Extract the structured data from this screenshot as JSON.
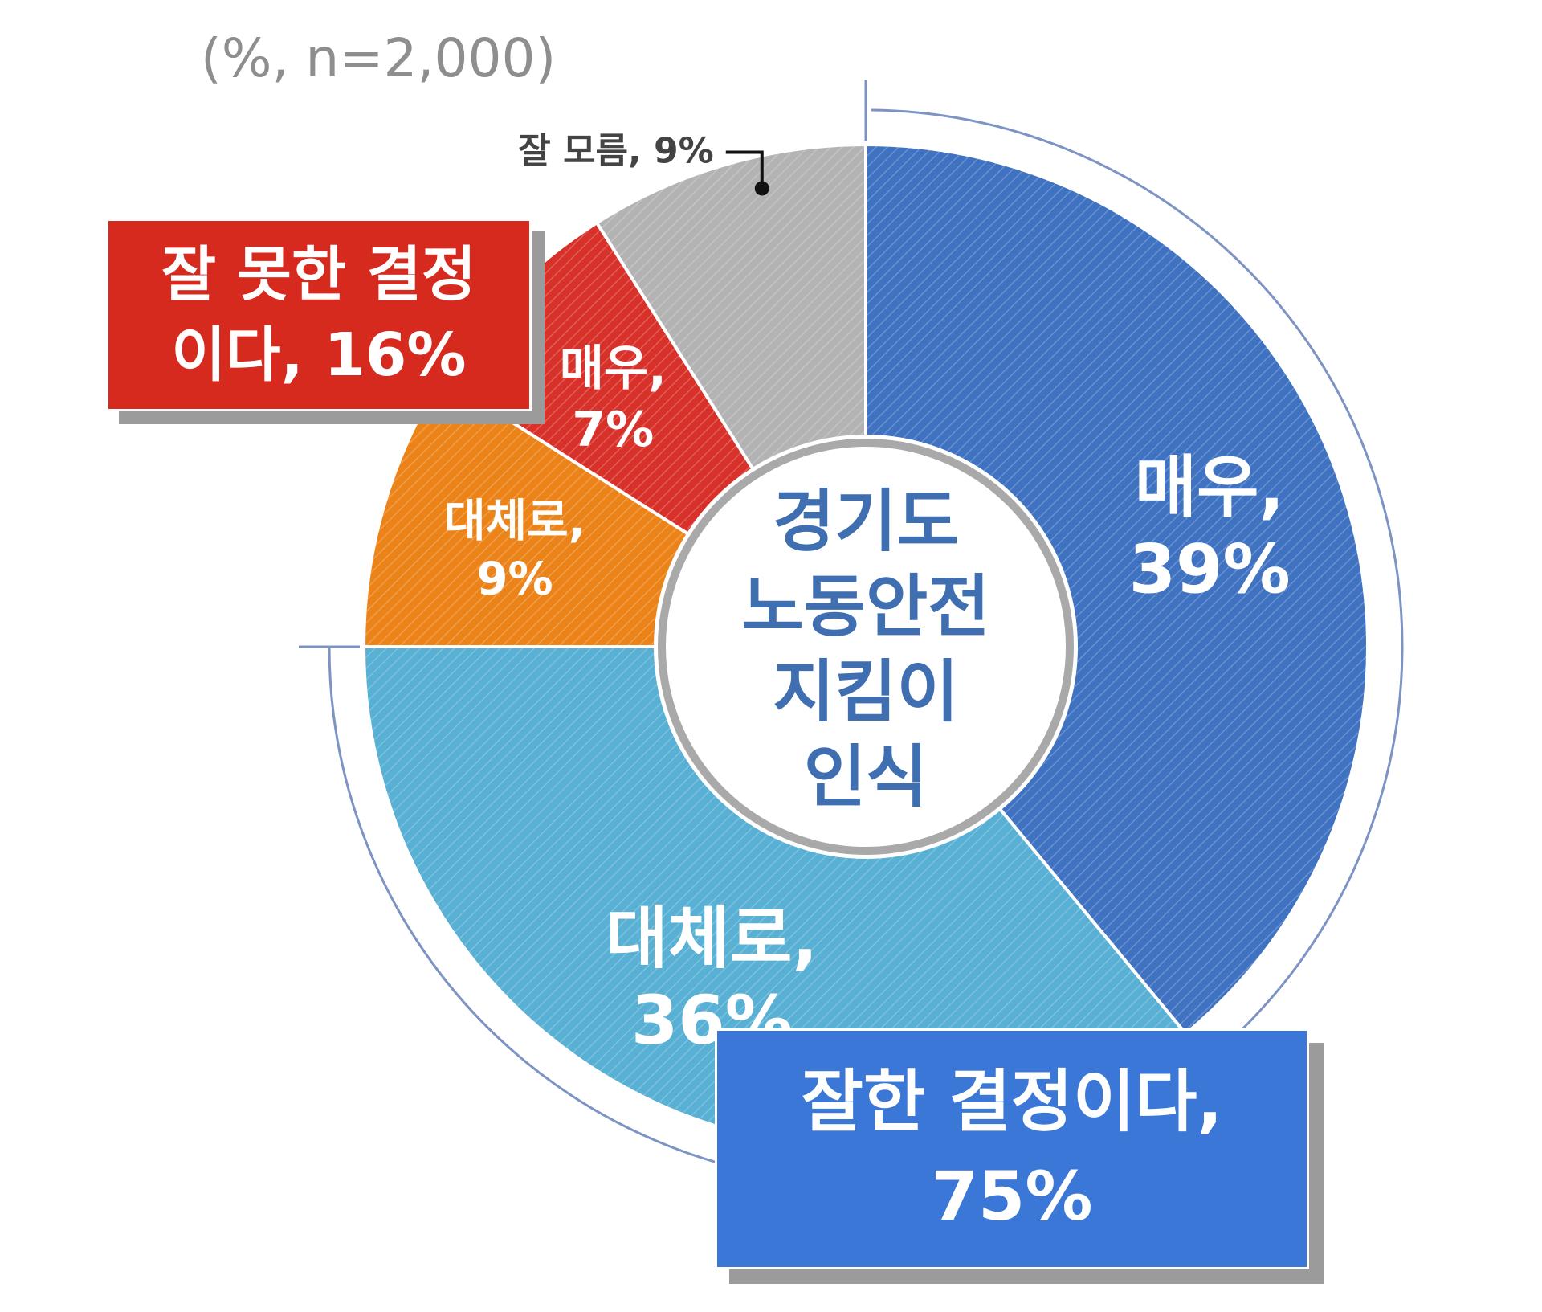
{
  "note": "(%, n=2,000)",
  "colors": {
    "very_positive": "#3f72c1",
    "somewhat_positive": "#58b0d4",
    "somewhat_negative": "#ec8318",
    "very_negative": "#d8312a",
    "dont_know": "#b3b3b3",
    "positive_box": "#3a77d6",
    "negative_box": "#d72a1f",
    "center_text": "#3f6fb0",
    "bracket": "#7d93c4"
  },
  "center_label": [
    "경기도",
    "노동안전",
    "지킴이",
    "인식"
  ],
  "groups": {
    "positive": {
      "line1": "잘한 결정이다,",
      "line2": "75%",
      "value": 75
    },
    "negative": {
      "line1": "잘 못한 결정",
      "line2": "이다, 16%",
      "value": 16
    }
  },
  "chart_data": {
    "type": "pie",
    "title": "",
    "slices": [
      {
        "label_line1": "매우,",
        "label_line2": "39%",
        "value": 39,
        "color_key": "very_positive",
        "group": "positive"
      },
      {
        "label_line1": "대체로,",
        "label_line2": "36%",
        "value": 36,
        "color_key": "somewhat_positive",
        "group": "positive"
      },
      {
        "label_line1": "대체로,",
        "label_line2": "9%",
        "value": 9,
        "color_key": "somewhat_negative",
        "group": "negative"
      },
      {
        "label_line1": "매우,",
        "label_line2": "7%",
        "value": 7,
        "color_key": "very_negative",
        "group": "negative"
      },
      {
        "label_line1": "잘 모름, 9%",
        "label_line2": "",
        "value": 9,
        "color_key": "dont_know",
        "group": "none"
      }
    ]
  }
}
